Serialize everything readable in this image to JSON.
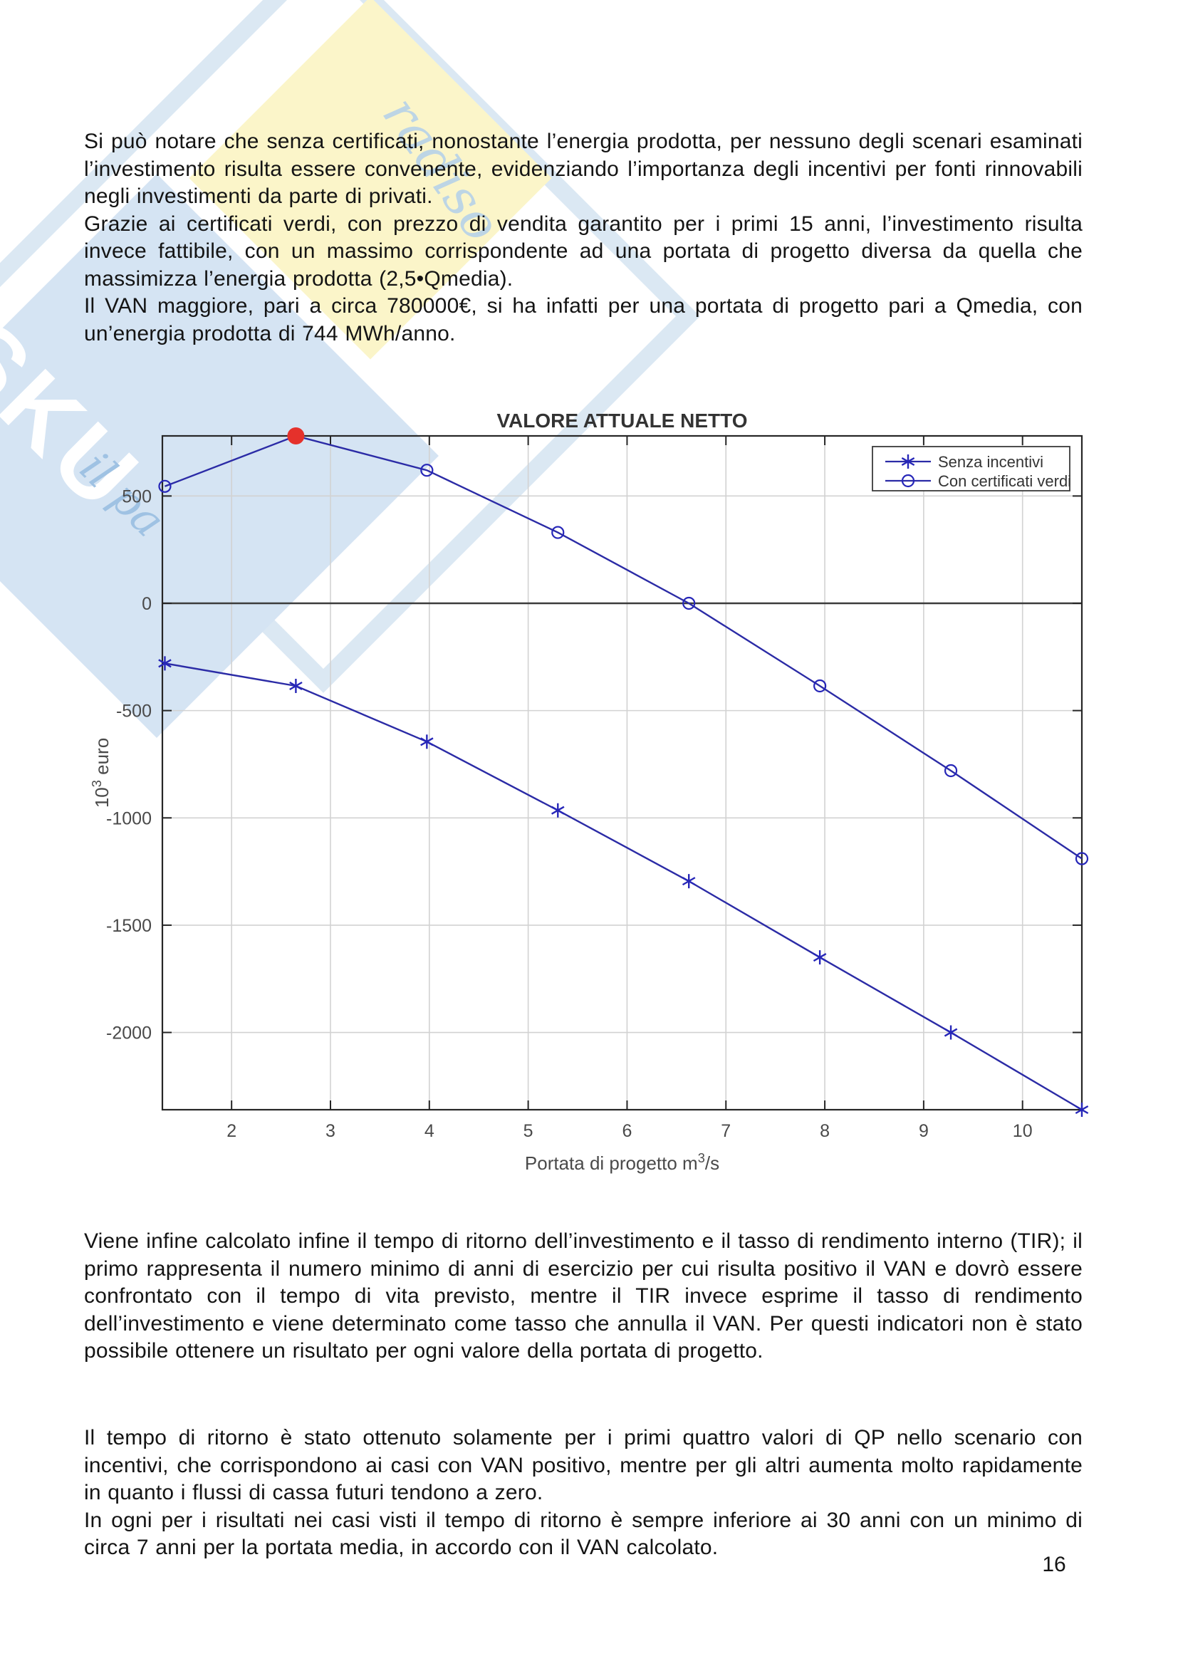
{
  "page": {
    "number": "16"
  },
  "paragraphs": {
    "p1": "Si può notare che senza certificati, nonostante l’energia prodotta, per nessuno degli scenari esaminati l’investimento risulta essere convenente, evidenziando l’importanza degli incentivi per fonti rinnovabili negli investimenti da parte di privati.",
    "p2": "Grazie ai certificati verdi, con prezzo di vendita garantito per i primi 15 anni, l’investimento risulta invece fattibile, con un massimo corrispondente ad una portata di progetto diversa da quella che massimizza l’energia prodotta (2,5•Qmedia).",
    "p3": "Il VAN maggiore, pari a circa 780000€, si ha infatti per una portata di progetto pari a Qmedia, con un’energia prodotta di 744 MWh/anno.",
    "p4": "Viene infine calcolato infine il tempo di ritorno dell’investimento e il tasso di rendimento interno (TIR); il primo rappresenta il numero minimo di anni di esercizio per cui risulta positivo il VAN e dovrò essere confrontato con il tempo di vita previsto, mentre il TIR invece esprime il tasso di rendimento dell’investimento e viene determinato come tasso che annulla il VAN. Per questi indicatori non è stato possibile ottenere un risultato per ogni valore della portata di progetto.",
    "p5": "Il tempo di ritorno è stato ottenuto solamente per i primi quattro valori di QP nello scenario con incentivi, che corrispondono ai casi con VAN positivo, mentre per gli altri aumenta molto rapidamente in quanto i flussi di cassa futuri tendono a zero.",
    "p6": "In ogni per i risultati nei casi visti il tempo di ritorno è sempre inferiore ai 30 anni con un minimo di circa 7 anni per la portata media, in accordo con il VAN calcolato."
  },
  "watermark": {
    "brand_fragment": "SKU",
    "script_fragment_1": "il pa",
    "script_fragment_2": "radiso",
    "blue": "#d5e4f3",
    "yellow": "#fbf5c9"
  },
  "chart_data": {
    "type": "line",
    "title": "VALORE ATTUALE NETTO",
    "xlabel": "Portata di progetto m^3/s",
    "ylabel": "10^3 euro",
    "x": [
      1.325,
      2.65,
      3.975,
      5.3,
      6.625,
      7.95,
      9.275,
      10.6
    ],
    "series": [
      {
        "name": "Senza incentivi",
        "marker": "asterisk",
        "values": [
          -280,
          -385,
          -645,
          -965,
          -1295,
          -1650,
          -2000,
          -2360
        ]
      },
      {
        "name": "Con certificati verdi",
        "marker": "circle",
        "values": [
          545,
          780,
          620,
          330,
          0,
          -385,
          -780,
          -1190
        ]
      }
    ],
    "highlight_point": {
      "series": "Con certificati verdi",
      "x": 2.65,
      "y": 780,
      "color": "#e5312b",
      "note": "massimo VAN ~780000 euro"
    },
    "xticks": [
      2,
      3,
      4,
      5,
      6,
      7,
      8,
      9,
      10
    ],
    "yticks": [
      500,
      0,
      -500,
      -1000,
      -1500,
      -2000
    ],
    "xlim": [
      1.3,
      10.6
    ],
    "ylim": [
      -2360,
      780
    ],
    "grid": true,
    "legend_position": "top-right",
    "colors": {
      "line": "#2b2ba6",
      "marker": "#2626b8",
      "grid": "#d2d2d2",
      "zero_line": "#3c3c3c",
      "axis": "#262626",
      "title": "#333333",
      "tick_text": "#4a4a4a",
      "legend_border": "#3a3a3a",
      "legend_bg": "#ffffff"
    }
  }
}
